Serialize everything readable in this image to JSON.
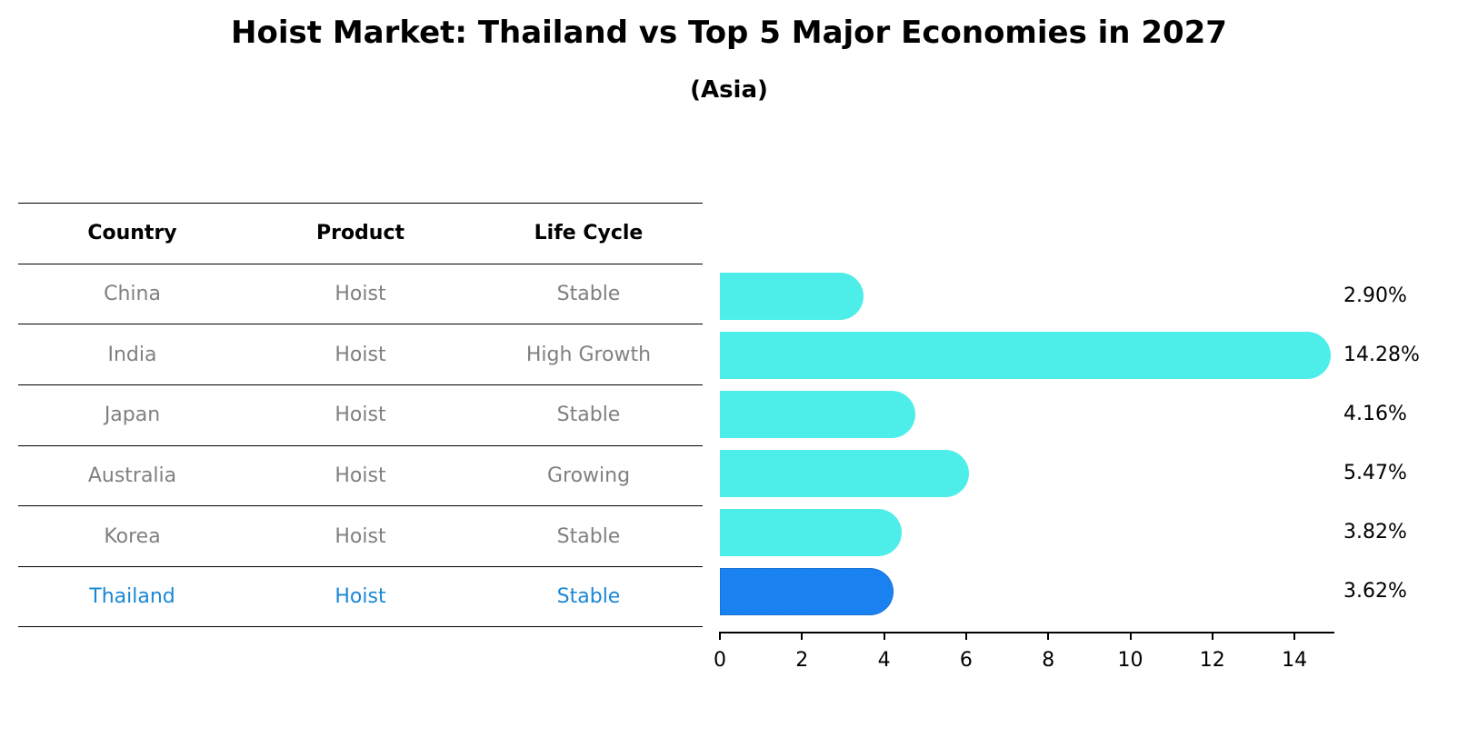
{
  "title": "Hoist Market: Thailand vs Top 5 Major Economies in 2027",
  "subtitle": "(Asia)",
  "table": {
    "headers": [
      "Country",
      "Product",
      "Life Cycle"
    ],
    "rows": [
      {
        "country": "China",
        "product": "Hoist",
        "life_cycle": "Stable",
        "highlight": false
      },
      {
        "country": "India",
        "product": "Hoist",
        "life_cycle": "High Growth",
        "highlight": false
      },
      {
        "country": "Japan",
        "product": "Hoist",
        "life_cycle": "Stable",
        "highlight": false
      },
      {
        "country": "Australia",
        "product": "Hoist",
        "life_cycle": "Growing",
        "highlight": false
      },
      {
        "country": "Korea",
        "product": "Hoist",
        "life_cycle": "Stable",
        "highlight": false
      },
      {
        "country": "Thailand",
        "product": "Hoist",
        "life_cycle": "Stable",
        "highlight": true
      }
    ]
  },
  "colors": {
    "bar_default": "#4deee9",
    "bar_highlight": "#1a82f0",
    "row_text_default": "#808080",
    "row_text_highlight": "#1a87d6"
  },
  "chart_data": {
    "type": "bar",
    "orientation": "horizontal",
    "title": "Hoist Market: Thailand vs Top 5 Major Economies in 2027",
    "subtitle": "(Asia)",
    "categories": [
      "China",
      "India",
      "Japan",
      "Australia",
      "Korea",
      "Thailand"
    ],
    "values": [
      2.9,
      14.28,
      4.16,
      5.47,
      3.82,
      3.62
    ],
    "value_labels": [
      "2.90%",
      "14.28%",
      "4.16%",
      "5.47%",
      "3.82%",
      "3.62%"
    ],
    "highlight": "Thailand",
    "xlabel": "",
    "ylabel": "",
    "xlim": [
      0,
      15
    ],
    "xticks": [
      0,
      2,
      4,
      6,
      8,
      10,
      12,
      14
    ],
    "grid": false,
    "legend": null
  }
}
